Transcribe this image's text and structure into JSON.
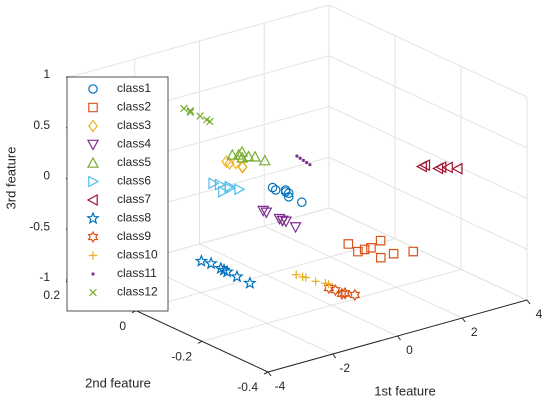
{
  "chart_data": {
    "type": "scatter3d",
    "xlabel": "1st feature",
    "ylabel": "2nd feature",
    "zlabel": "3rd feature",
    "xlim": [
      -4,
      4
    ],
    "xticks": [
      -4,
      -2,
      0,
      2,
      4
    ],
    "ylim": [
      -0.4,
      0.2
    ],
    "yticks": [
      -0.4,
      -0.2,
      0,
      0.2
    ],
    "zlim": [
      -1,
      1
    ],
    "zticks": [
      -1,
      -0.5,
      0,
      0.5,
      1
    ],
    "grid": true,
    "legend": "upper left",
    "series": [
      {
        "name": "class1",
        "color": "#0072BD",
        "marker": "circle",
        "x": [
          -0.8,
          -0.6,
          -0.5,
          -0.3,
          -0.2,
          0.0,
          -0.4
        ],
        "y": [
          -0.1,
          -0.12,
          -0.08,
          -0.1,
          -0.09,
          -0.11,
          -0.1
        ],
        "z": [
          0.08,
          0.05,
          0.0,
          -0.02,
          -0.08,
          -0.12,
          0.02
        ]
      },
      {
        "name": "class2",
        "color": "#D95319",
        "marker": "square",
        "x": [
          -0.5,
          -0.2,
          0.0,
          0.2,
          0.4,
          0.6,
          0.9,
          1.2
        ],
        "y": [
          -0.3,
          -0.32,
          -0.28,
          -0.3,
          -0.31,
          -0.29,
          -0.3,
          -0.33
        ],
        "z": [
          -0.2,
          -0.25,
          -0.35,
          -0.3,
          -0.4,
          -0.28,
          -0.42,
          -0.38
        ]
      },
      {
        "name": "class3",
        "color": "#EDB120",
        "marker": "diamond",
        "x": [
          -0.7,
          -0.5,
          -0.3,
          -0.2,
          -0.4
        ],
        "y": [
          0.05,
          0.06,
          0.04,
          0.05,
          0.05
        ],
        "z": [
          0.1,
          0.05,
          0.03,
          0.0,
          0.06
        ]
      },
      {
        "name": "class4",
        "color": "#7E2F8E",
        "marker": "tri-down",
        "x": [
          -1.6,
          -1.4,
          -1.2,
          -1.0,
          -0.8,
          -0.6,
          -1.1
        ],
        "y": [
          -0.15,
          -0.14,
          -0.16,
          -0.15,
          -0.13,
          -0.15,
          -0.17
        ],
        "z": [
          0.0,
          -0.05,
          -0.1,
          -0.15,
          -0.2,
          -0.25,
          -0.12
        ]
      },
      {
        "name": "class5",
        "color": "#77AC30",
        "marker": "tri-up",
        "x": [
          0.2,
          0.4,
          0.5,
          0.7,
          0.9,
          1.1,
          0.6
        ],
        "y": [
          0.12,
          0.11,
          0.13,
          0.12,
          0.12,
          0.11,
          0.13
        ],
        "z": [
          -0.02,
          -0.05,
          -0.06,
          -0.08,
          -0.1,
          -0.14,
          -0.04
        ]
      },
      {
        "name": "class6",
        "color": "#4DBEEE",
        "marker": "tri-right",
        "x": [
          -0.8,
          -0.6,
          -0.4,
          -0.2,
          0.0,
          -0.5
        ],
        "y": [
          0.08,
          0.08,
          0.07,
          0.09,
          0.08,
          0.08
        ],
        "z": [
          -0.15,
          -0.18,
          -0.22,
          -0.25,
          -0.28,
          -0.26
        ]
      },
      {
        "name": "class7",
        "color": "#A2142F",
        "marker": "tri-left",
        "x": [
          2.8,
          3.0,
          3.2,
          3.4,
          3.6,
          3.9
        ],
        "y": [
          -0.2,
          -0.19,
          -0.21,
          -0.2,
          -0.2,
          -0.2
        ],
        "z": [
          0.12,
          0.1,
          0.08,
          0.06,
          0.04,
          0.0
        ]
      },
      {
        "name": "class8",
        "color": "#0072BD",
        "marker": "pentagram",
        "x": [
          -3.0,
          -2.7,
          -2.5,
          -2.3,
          -2.1,
          -1.9,
          -1.5
        ],
        "y": [
          -0.1,
          -0.1,
          -0.11,
          -0.1,
          -0.09,
          -0.1,
          -0.1
        ],
        "z": [
          -0.45,
          -0.5,
          -0.55,
          -0.6,
          -0.65,
          -0.7,
          -0.8
        ]
      },
      {
        "name": "class9",
        "color": "#D95319",
        "marker": "hexagram",
        "x": [
          -1.1,
          -0.9,
          -0.8,
          -0.6,
          -0.5,
          -0.3
        ],
        "y": [
          -0.3,
          -0.3,
          -0.31,
          -0.3,
          -0.29,
          -0.3
        ],
        "z": [
          -0.58,
          -0.62,
          -0.65,
          -0.68,
          -0.7,
          -0.72
        ]
      },
      {
        "name": "class10",
        "color": "#EDB120",
        "marker": "plus",
        "x": [
          -1.6,
          -1.4,
          -1.2,
          -1.0,
          -0.8,
          -0.6
        ],
        "y": [
          -0.25,
          -0.25,
          -0.24,
          -0.25,
          -0.26,
          -0.25
        ],
        "z": [
          -0.48,
          -0.52,
          -0.56,
          -0.6,
          -0.62,
          -0.66
        ]
      },
      {
        "name": "class11",
        "color": "#7E2F8E",
        "marker": "point",
        "x": [
          2.5,
          2.6,
          2.7,
          2.8,
          2.9
        ],
        "y": [
          0.15,
          0.15,
          0.15,
          0.15,
          0.15
        ],
        "z": [
          -0.28,
          -0.31,
          -0.34,
          -0.37,
          -0.4
        ]
      },
      {
        "name": "class12",
        "color": "#77AC30",
        "marker": "x",
        "x": [
          -1.5,
          -1.3,
          -1.2,
          -1.0,
          -0.9,
          -0.7
        ],
        "y": [
          0.1,
          0.1,
          0.11,
          0.1,
          0.09,
          0.1
        ],
        "z": [
          0.62,
          0.58,
          0.54,
          0.5,
          0.47,
          0.42
        ]
      }
    ]
  }
}
